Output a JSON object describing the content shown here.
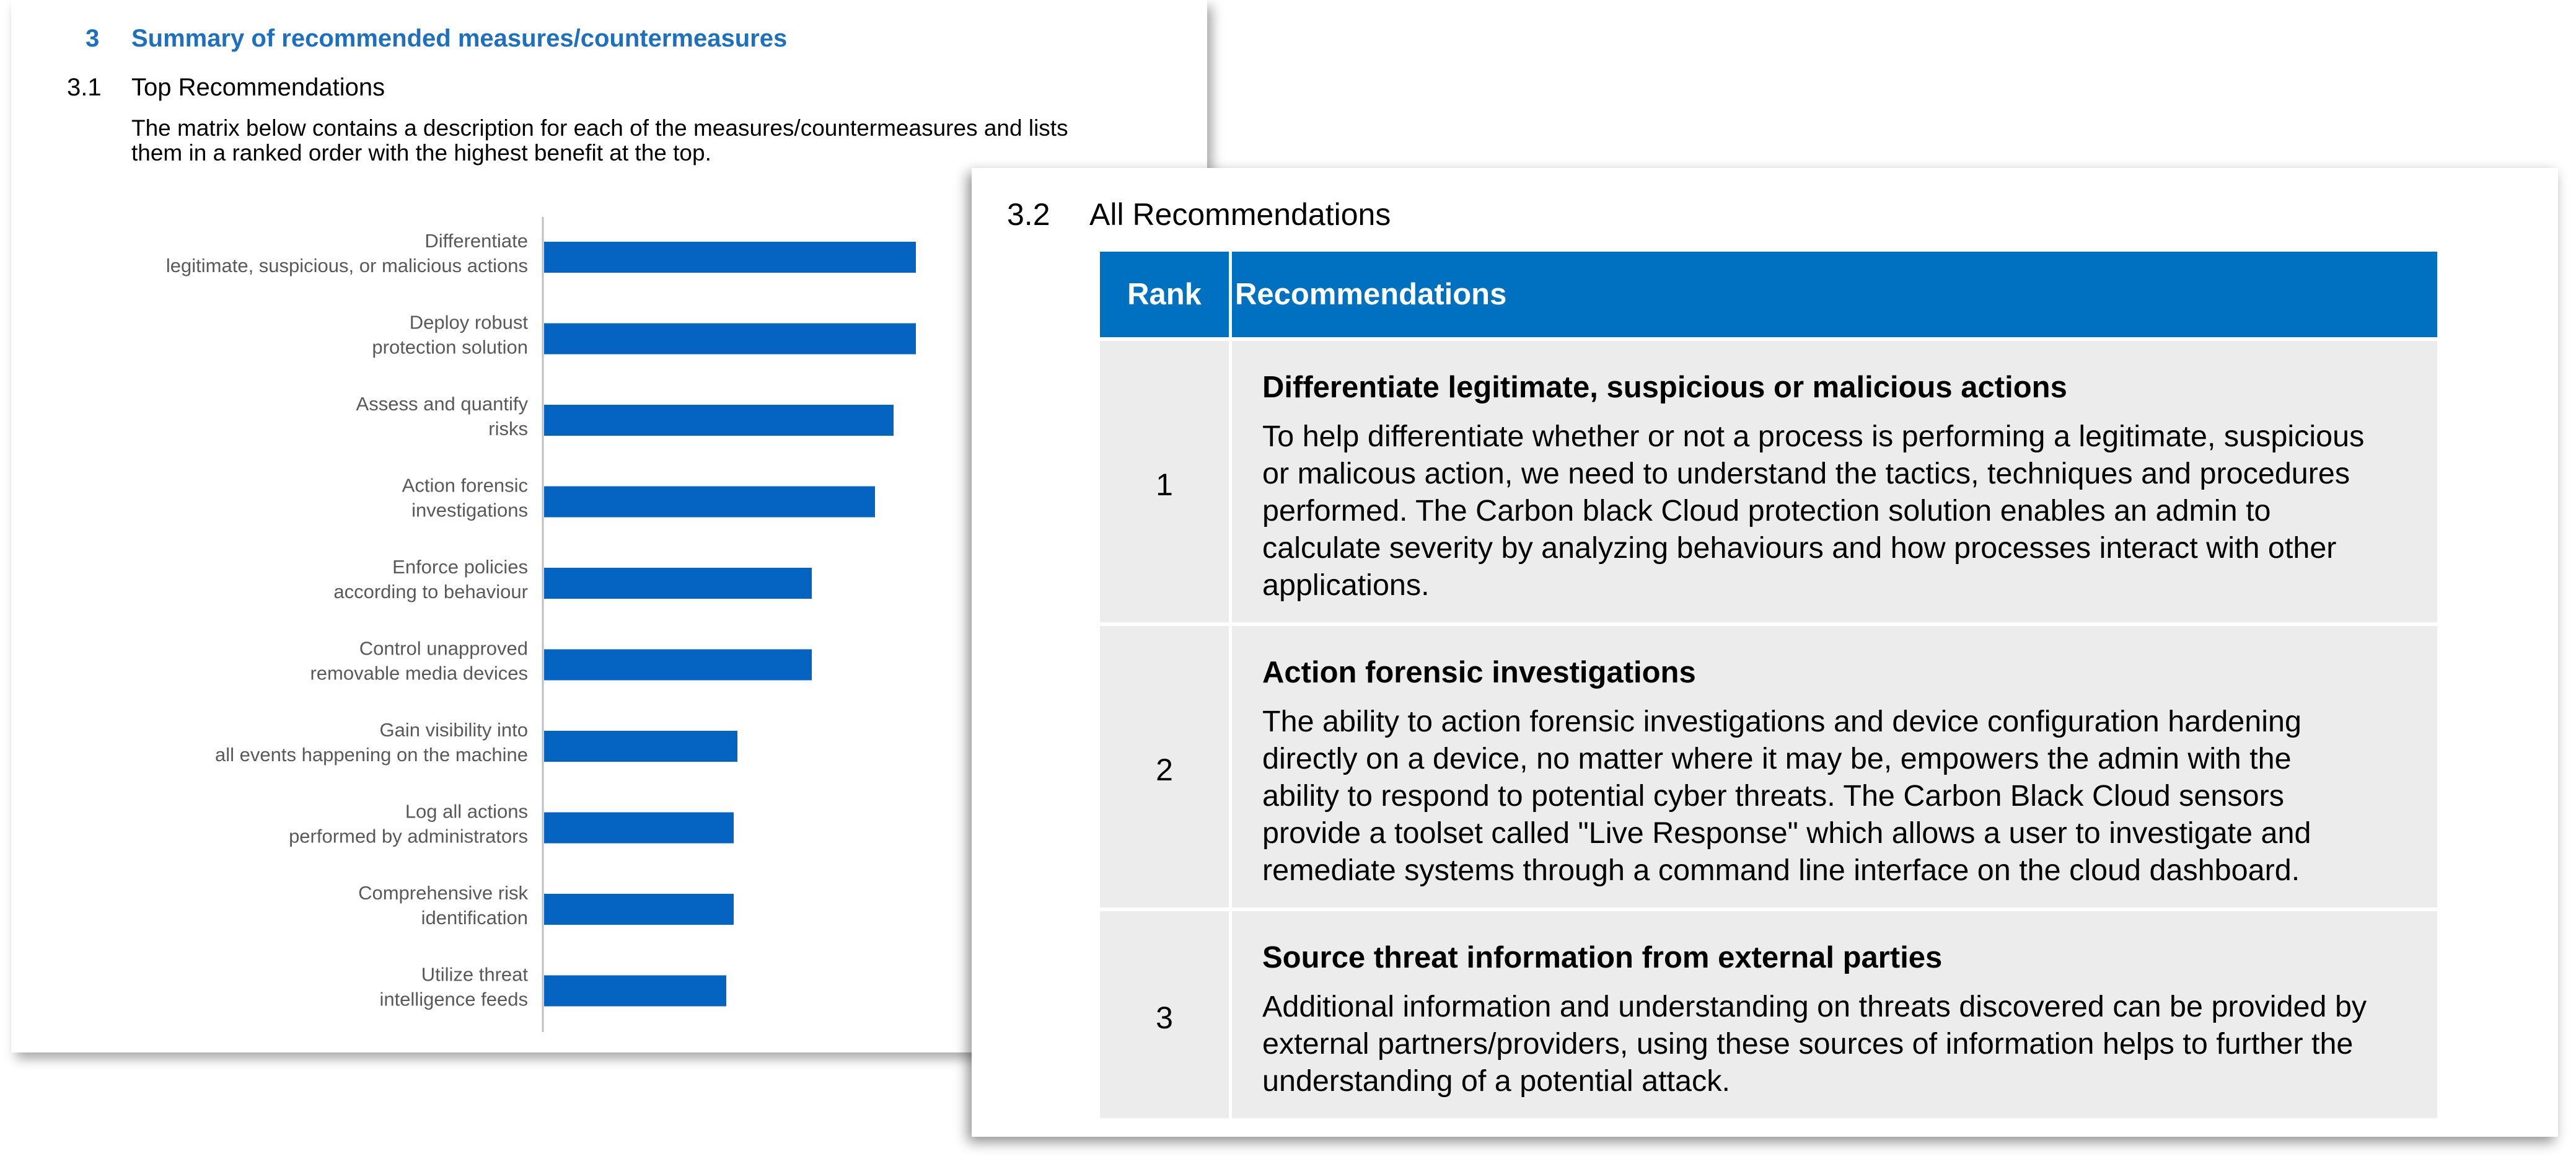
{
  "left_page": {
    "section_number": "3",
    "section_title": "Summary of recommended measures/countermeasures",
    "subsection_number": "3.1",
    "subsection_title": "Top Recommendations",
    "intro_line1": "The matrix below contains a description for each of the measures/countermeasures and lists",
    "intro_line2": "them in a ranked order with the highest benefit at the top."
  },
  "chart_data": {
    "type": "bar",
    "orientation": "horizontal",
    "categories": [
      [
        "Differentiate",
        "legitimate, suspicious, or malicious actions"
      ],
      [
        "Deploy robust",
        "protection solution"
      ],
      [
        "Assess and quantify",
        "risks"
      ],
      [
        "Action forensic",
        "investigations"
      ],
      [
        "Enforce policies",
        "according to behaviour"
      ],
      [
        "Control unapproved",
        "removable media devices"
      ],
      [
        "Gain visibility into",
        "all events happening on the machine"
      ],
      [
        "Log all actions",
        "performed by administrators"
      ],
      [
        "Comprehensive risk",
        "identification"
      ],
      [
        "Utilize threat",
        "intelligence feeds"
      ]
    ],
    "values": [
      100,
      100,
      94,
      89,
      72,
      72,
      52,
      51,
      51,
      49
    ],
    "xlim": [
      0,
      100
    ],
    "bar_color": "#0563c1",
    "grid": false,
    "legend": "none",
    "title": "",
    "xlabel": "",
    "ylabel": ""
  },
  "right_page": {
    "subsection_number": "3.2",
    "subsection_title": "All Recommendations",
    "table_header_color": "#0070c0",
    "table_row_color": "#ececec",
    "columns": [
      "Rank",
      "Recommendations"
    ],
    "rows": [
      {
        "rank": "1",
        "title": "Differentiate legitimate, suspicious or malicious actions",
        "lines": [
          "To help differentiate whether or not a process is performing a legitimate, suspicious",
          "or malicous action, we need to understand the tactics, techniques and procedures",
          "performed. The Carbon black Cloud protection solution enables an admin to",
          "calculate severity by analyzing behaviours and how processes interact with other",
          "applications."
        ]
      },
      {
        "rank": "2",
        "title": "Action forensic investigations",
        "lines": [
          "The ability to action forensic investigations and device configuration hardening",
          "directly on a device, no matter where it may be, empowers the admin with the",
          "ability to respond to potential cyber threats. The Carbon Black Cloud sensors",
          "provide a toolset called \"Live Response\" which allows a user to investigate and",
          "remediate systems through a command line interface on the cloud dashboard."
        ]
      },
      {
        "rank": "3",
        "title": "Source threat information from external parties",
        "lines": [
          "Additional information and understanding on threats discovered can be provided by",
          "external partners/providers, using these sources of information helps to further the",
          "understanding of a potential attack."
        ]
      }
    ]
  }
}
